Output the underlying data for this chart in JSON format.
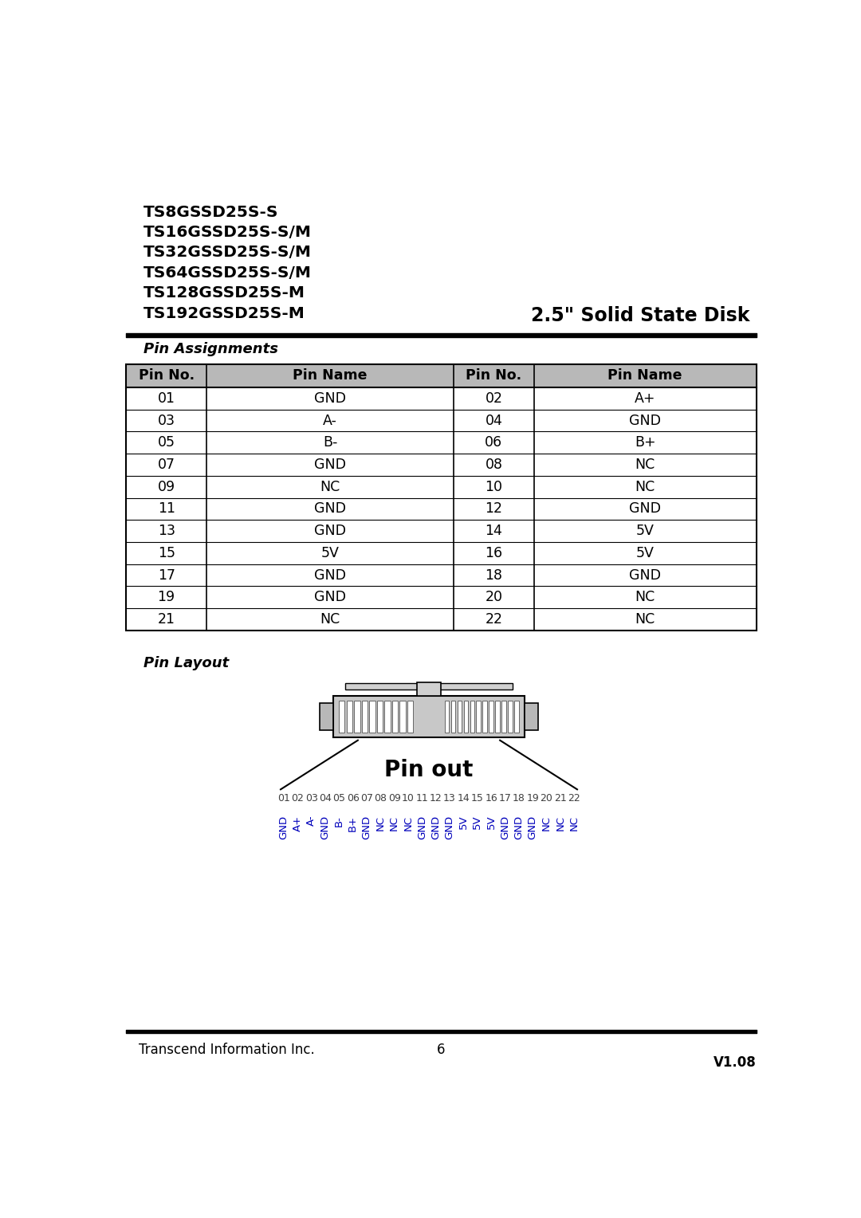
{
  "bg_color": "#ffffff",
  "product_lines": [
    "TS8GSSD25S-S",
    "TS16GSSD25S-S/M",
    "TS32GSSD25S-S/M",
    "TS64GSSD25S-S/M",
    "TS128GSSD25S-M",
    "TS192GSSD25S-M"
  ],
  "product_type": "2.5\" Solid State Disk",
  "section_title": "Pin Assignments",
  "table_header": [
    "Pin No.",
    "Pin Name",
    "Pin No.",
    "Pin Name"
  ],
  "table_data": [
    [
      "01",
      "GND",
      "02",
      "A+"
    ],
    [
      "03",
      "A-",
      "04",
      "GND"
    ],
    [
      "05",
      "B-",
      "06",
      "B+"
    ],
    [
      "07",
      "GND",
      "08",
      "NC"
    ],
    [
      "09",
      "NC",
      "10",
      "NC"
    ],
    [
      "11",
      "GND",
      "12",
      "GND"
    ],
    [
      "13",
      "GND",
      "14",
      "5V"
    ],
    [
      "15",
      "5V",
      "16",
      "5V"
    ],
    [
      "17",
      "GND",
      "18",
      "GND"
    ],
    [
      "19",
      "GND",
      "20",
      "NC"
    ],
    [
      "21",
      "NC",
      "22",
      "NC"
    ]
  ],
  "pin_layout_title": "Pin Layout",
  "pin_out_label": "Pin out",
  "pin_numbers": [
    "01",
    "02",
    "03",
    "04",
    "05",
    "06",
    "07",
    "08",
    "09",
    "10",
    "11",
    "12",
    "13",
    "14",
    "15",
    "16",
    "17",
    "18",
    "19",
    "20",
    "21",
    "22"
  ],
  "pin_names": [
    "GND",
    "A+",
    "A-",
    "GND",
    "B-",
    "B+",
    "GND",
    "NC",
    "NC",
    "NC",
    "GND",
    "GND",
    "GND",
    "5V",
    "5V",
    "5V",
    "GND",
    "GND",
    "GND",
    "NC",
    "NC",
    "NC"
  ],
  "footer_left": "Transcend Information Inc.",
  "footer_center": "6",
  "footer_right": "V1.08",
  "header_color": "#b8b8b8",
  "table_border_color": "#000000",
  "text_color": "#000000",
  "blue_color": "#0000bb"
}
